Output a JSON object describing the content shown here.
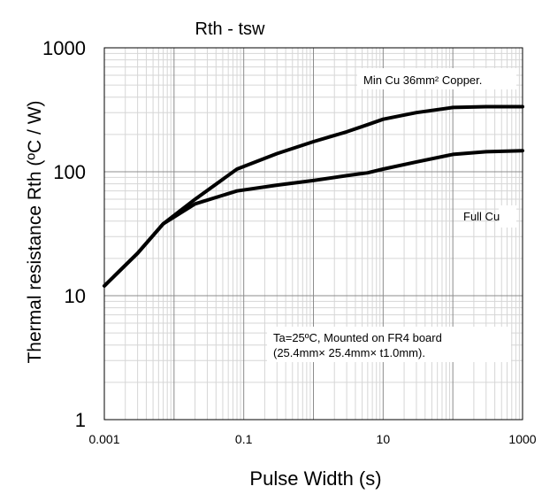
{
  "chart_data": {
    "type": "line",
    "title": "Rth - tsw",
    "xlabel": "Pulse Width (s)",
    "ylabel": "Thermal resistance Rth (ºC / W)",
    "x_scale": "log",
    "y_scale": "log",
    "xlim": [
      0.001,
      1000
    ],
    "ylim": [
      1,
      1000
    ],
    "x_ticks": [
      "0.001",
      "0.1",
      "10",
      "1000"
    ],
    "y_ticks": [
      "1",
      "10",
      "100",
      "1000"
    ],
    "x_tick_values": [
      0.001,
      0.1,
      10,
      1000
    ],
    "y_tick_values": [
      1,
      10,
      100,
      1000
    ],
    "grid": true,
    "series": [
      {
        "name": "Min Cu 36mm² Copper.",
        "x": [
          0.001,
          0.003,
          0.007,
          0.02,
          0.08,
          0.3,
          1,
          3,
          6,
          10,
          30,
          100,
          300,
          1000
        ],
        "y": [
          12,
          22,
          38,
          60,
          105,
          140,
          175,
          210,
          240,
          265,
          300,
          330,
          335,
          335
        ]
      },
      {
        "name": "Full Cu",
        "x": [
          0.001,
          0.003,
          0.007,
          0.02,
          0.08,
          0.3,
          1,
          3,
          6,
          10,
          30,
          100,
          300,
          1000
        ],
        "y": [
          12,
          22,
          38,
          55,
          70,
          78,
          85,
          93,
          98,
          105,
          120,
          138,
          145,
          148
        ]
      }
    ],
    "annotations": {
      "series1_label": "Min Cu 36mm² Copper.",
      "series2_label": "Full Cu",
      "condition_line1": "Ta=25ºC, Mounted on FR4 board",
      "condition_line2": "(25.4mm× 25.4mm× t1.0mm)."
    }
  }
}
